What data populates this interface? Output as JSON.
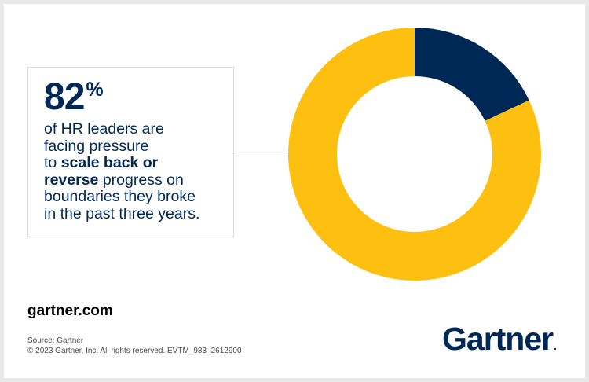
{
  "chart_data": {
    "type": "pie",
    "variant": "donut",
    "slices": [
      {
        "label": "facing pressure",
        "value": 82,
        "color": "#FDC010"
      },
      {
        "label": "",
        "value": 18,
        "color": "#002856"
      }
    ]
  },
  "callout": {
    "stat_value": "82",
    "stat_unit": "%",
    "line1": "of HR leaders are",
    "line2": "facing pressure",
    "line3_pre": "to ",
    "line3_bold": "scale back or",
    "line4_bold": "reverse",
    "line4_post": " progress on",
    "line5": "boundaries they broke",
    "line6": "in the past three years."
  },
  "footer": {
    "site": "gartner.com",
    "source": "Source: Gartner",
    "copyright": "© 2023 Gartner, Inc. All rights reserved. EVTM_983_2612900"
  },
  "logo": {
    "wordmark": "Gartner",
    "mark": "."
  },
  "colors": {
    "navy": "#002856",
    "yellow": "#FDC010",
    "callout_border": "#F9D88A",
    "frame": "#E8E8E8"
  }
}
